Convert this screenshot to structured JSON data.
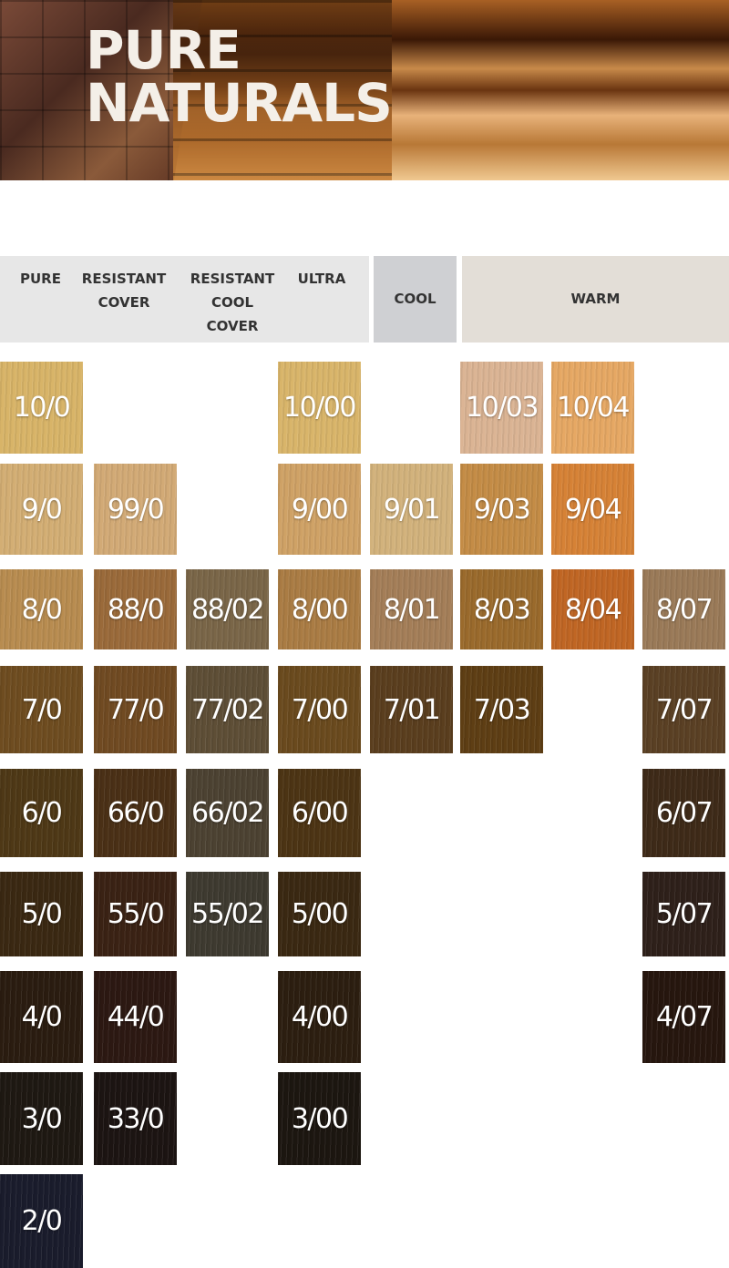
{
  "banner": {
    "title_line1": "PURE",
    "title_line2": "NATURALS"
  },
  "headers": {
    "pure": "PURE",
    "resistant_cover": "RESISTANT\nCOVER",
    "resistant_cool_cover": "RESISTANT\nCOOL\nCOVER",
    "ultra": "ULTRA",
    "cool": "COOL",
    "warm": "WARM"
  },
  "swatches": [
    {
      "label": "10/0",
      "col": 0,
      "row": 0,
      "color": "#d8b468"
    },
    {
      "label": "10/00",
      "col": 3,
      "row": 0,
      "color": "#d9b56a"
    },
    {
      "label": "10/03",
      "col": 5,
      "row": 0,
      "color": "#dbb494"
    },
    {
      "label": "10/04",
      "col": 6,
      "row": 0,
      "color": "#e6a864"
    },
    {
      "label": "9/0",
      "col": 0,
      "row": 1,
      "color": "#d3ae74"
    },
    {
      "label": "99/0",
      "col": 1,
      "row": 1,
      "color": "#d2aa76"
    },
    {
      "label": "9/00",
      "col": 3,
      "row": 1,
      "color": "#cfa266"
    },
    {
      "label": "9/01",
      "col": 4,
      "row": 1,
      "color": "#d2b27c"
    },
    {
      "label": "9/03",
      "col": 5,
      "row": 1,
      "color": "#c48c46"
    },
    {
      "label": "9/04",
      "col": 6,
      "row": 1,
      "color": "#d68236"
    },
    {
      "label": "8/0",
      "col": 0,
      "row": 2,
      "color": "#b88c50"
    },
    {
      "label": "88/0",
      "col": 1,
      "row": 2,
      "color": "#9a6a3a"
    },
    {
      "label": "88/02",
      "col": 2,
      "row": 2,
      "color": "#7a6648"
    },
    {
      "label": "8/00",
      "col": 3,
      "row": 2,
      "color": "#aa7c44"
    },
    {
      "label": "8/01",
      "col": 4,
      "row": 2,
      "color": "#a47e58"
    },
    {
      "label": "8/03",
      "col": 5,
      "row": 2,
      "color": "#9a6a2c"
    },
    {
      "label": "8/04",
      "col": 6,
      "row": 2,
      "color": "#c06624"
    },
    {
      "label": "8/07",
      "col": 7,
      "row": 2,
      "color": "#9a7a58"
    },
    {
      "label": "7/0",
      "col": 0,
      "row": 3,
      "color": "#6e4c20"
    },
    {
      "label": "77/0",
      "col": 1,
      "row": 3,
      "color": "#704a22"
    },
    {
      "label": "77/02",
      "col": 2,
      "row": 3,
      "color": "#5e4e36"
    },
    {
      "label": "7/00",
      "col": 3,
      "row": 3,
      "color": "#6a4a1e"
    },
    {
      "label": "7/01",
      "col": 4,
      "row": 3,
      "color": "#5a3e1e"
    },
    {
      "label": "7/03",
      "col": 5,
      "row": 3,
      "color": "#5e3e14"
    },
    {
      "label": "7/07",
      "col": 7,
      "row": 3,
      "color": "#5a4024"
    },
    {
      "label": "6/0",
      "col": 0,
      "row": 4,
      "color": "#4e3816"
    },
    {
      "label": "66/0",
      "col": 1,
      "row": 4,
      "color": "#4a3016"
    },
    {
      "label": "66/02",
      "col": 2,
      "row": 4,
      "color": "#4c4232"
    },
    {
      "label": "6/00",
      "col": 3,
      "row": 4,
      "color": "#4c3414"
    },
    {
      "label": "6/07",
      "col": 7,
      "row": 4,
      "color": "#3e2a18"
    },
    {
      "label": "5/0",
      "col": 0,
      "row": 5,
      "color": "#3a2812"
    },
    {
      "label": "55/0",
      "col": 1,
      "row": 5,
      "color": "#3a2214"
    },
    {
      "label": "55/02",
      "col": 2,
      "row": 5,
      "color": "#3e3a30"
    },
    {
      "label": "5/00",
      "col": 3,
      "row": 5,
      "color": "#3a2812"
    },
    {
      "label": "5/07",
      "col": 7,
      "row": 5,
      "color": "#2e201a"
    },
    {
      "label": "4/0",
      "col": 0,
      "row": 6,
      "color": "#2a1c10"
    },
    {
      "label": "44/0",
      "col": 1,
      "row": 6,
      "color": "#2c1812"
    },
    {
      "label": "4/00",
      "col": 3,
      "row": 6,
      "color": "#2c1e10"
    },
    {
      "label": "4/07",
      "col": 7,
      "row": 6,
      "color": "#26160e"
    },
    {
      "label": "3/0",
      "col": 0,
      "row": 7,
      "color": "#1e1812"
    },
    {
      "label": "33/0",
      "col": 1,
      "row": 7,
      "color": "#1c1412"
    },
    {
      "label": "3/00",
      "col": 3,
      "row": 7,
      "color": "#1c1610"
    },
    {
      "label": "2/0",
      "col": 0,
      "row": 8,
      "color": "#1a1c2c"
    }
  ]
}
